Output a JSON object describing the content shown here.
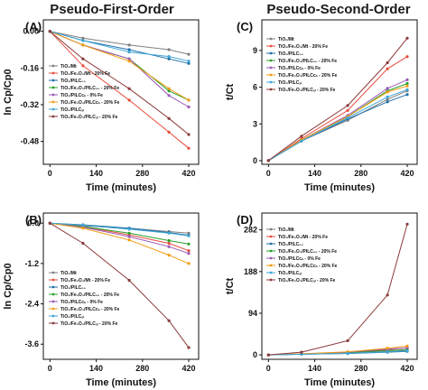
{
  "titles": {
    "left": "Pseudo-First-Order",
    "right": "Pseudo-Second-Order"
  },
  "series_names": [
    "TiO₂/Mt",
    "TiO₂/Fe₂O₃/Mt - 20% Fe",
    "TiO₂/PILC₀₀",
    "TiO₂/Fe₂O₃/PILC₀₀ - 20% Fe",
    "TiO₂/PILCᴄₙ - 0% Fe",
    "TiO₂/Fe₂O₃/PILCᴄₙ - 20% Fe",
    "TiO₂/PILCₐₗ",
    "TiO₂/Fe₂O₃/PILCₐₗ - 20% Fe"
  ],
  "colors": [
    "#7f7f7f",
    "#e74c3c",
    "#1f6fa8",
    "#2ca02c",
    "#9b59b6",
    "#f39c12",
    "#3fa7d6",
    "#8b3a3a"
  ],
  "chart_data": [
    {
      "letter": "(A)",
      "type": "line",
      "xlabel": "Time (minutes)",
      "ylabel": "ln Cp/Cp0",
      "xlim": [
        -20,
        450
      ],
      "ylim": [
        -0.58,
        0.05
      ],
      "xticks": [
        0,
        140,
        280,
        420
      ],
      "yticks": [
        0.0,
        -0.16,
        -0.32,
        -0.48
      ],
      "ytick_labels": [
        "0.00",
        "-0.16",
        "-0.32",
        "-0.48"
      ],
      "x": [
        0,
        100,
        240,
        360,
        420
      ],
      "series": [
        {
          "values": [
            0,
            -0.03,
            -0.06,
            -0.08,
            -0.1
          ]
        },
        {
          "values": [
            0,
            -0.15,
            -0.3,
            -0.44,
            -0.51
          ]
        },
        {
          "values": [
            0,
            -0.04,
            -0.08,
            -0.12,
            -0.14
          ]
        },
        {
          "values": [
            0,
            -0.06,
            -0.12,
            -0.26,
            -0.3
          ]
        },
        {
          "values": [
            0,
            -0.06,
            -0.12,
            -0.28,
            -0.33
          ]
        },
        {
          "values": [
            0,
            -0.06,
            -0.13,
            -0.25,
            -0.3
          ]
        },
        {
          "values": [
            0,
            -0.04,
            -0.09,
            -0.11,
            -0.13
          ]
        },
        {
          "values": [
            0,
            -0.12,
            -0.25,
            -0.38,
            -0.45
          ]
        }
      ]
    },
    {
      "letter": "(C)",
      "type": "line",
      "xlabel": "Time (minutes)",
      "ylabel": "t/Ct",
      "xlim": [
        -20,
        450
      ],
      "ylim": [
        -0.3,
        11.5
      ],
      "xticks": [
        0,
        140,
        280,
        420
      ],
      "yticks": [
        0,
        3,
        6,
        9
      ],
      "ytick_labels": [
        "0",
        "3",
        "6",
        "9"
      ],
      "x": [
        0,
        100,
        240,
        360,
        420
      ],
      "series": [
        {
          "values": [
            0,
            1.6,
            3.3,
            5.0,
            5.7
          ]
        },
        {
          "values": [
            0,
            1.8,
            4.1,
            7.5,
            8.5
          ]
        },
        {
          "values": [
            0,
            1.6,
            3.4,
            4.8,
            5.4
          ]
        },
        {
          "values": [
            0,
            1.7,
            3.6,
            5.7,
            6.3
          ]
        },
        {
          "values": [
            0,
            1.7,
            3.7,
            5.9,
            6.6
          ]
        },
        {
          "values": [
            0,
            1.7,
            3.6,
            5.6,
            6.1
          ]
        },
        {
          "values": [
            0,
            1.6,
            3.5,
            5.2,
            5.8
          ]
        },
        {
          "values": [
            0,
            2.0,
            4.5,
            8.0,
            10.0
          ]
        }
      ]
    },
    {
      "letter": "(B)",
      "type": "line",
      "xlabel": "Time (minutes)",
      "ylabel": "ln Cp/Cp0",
      "xlim": [
        -20,
        450
      ],
      "ylim": [
        -4.05,
        0.3
      ],
      "xticks": [
        0,
        140,
        280,
        420
      ],
      "yticks": [
        0.0,
        -1.2,
        -2.4,
        -3.6
      ],
      "ytick_labels": [
        "0.0",
        "-1.2",
        "-2.4",
        "-3.6"
      ],
      "x": [
        0,
        100,
        240,
        360,
        420
      ],
      "series": [
        {
          "values": [
            0,
            -0.08,
            -0.15,
            -0.25,
            -0.3
          ]
        },
        {
          "values": [
            0,
            -0.1,
            -0.35,
            -0.6,
            -0.82
          ]
        },
        {
          "values": [
            0,
            -0.05,
            -0.15,
            -0.28,
            -0.36
          ]
        },
        {
          "values": [
            0,
            -0.1,
            -0.3,
            -0.52,
            -0.62
          ]
        },
        {
          "values": [
            0,
            -0.12,
            -0.4,
            -0.7,
            -0.9
          ]
        },
        {
          "values": [
            0,
            -0.15,
            -0.5,
            -0.95,
            -1.2
          ]
        },
        {
          "values": [
            0,
            -0.06,
            -0.18,
            -0.3,
            -0.38
          ]
        },
        {
          "values": [
            0,
            -0.6,
            -1.7,
            -2.9,
            -3.7
          ]
        }
      ]
    },
    {
      "letter": "(D)",
      "type": "line",
      "xlabel": "Time (minutes)",
      "ylabel": "t/Ct",
      "xlim": [
        -20,
        450
      ],
      "ylim": [
        -10,
        320
      ],
      "xticks": [
        0,
        140,
        280,
        420
      ],
      "yticks": [
        0,
        94,
        188,
        282
      ],
      "ytick_labels": [
        "0",
        "94",
        "188",
        "282"
      ],
      "x": [
        0,
        100,
        240,
        360,
        420
      ],
      "series": [
        {
          "values": [
            0,
            1.5,
            4,
            8,
            10
          ]
        },
        {
          "values": [
            0,
            2,
            5,
            12,
            16
          ]
        },
        {
          "values": [
            0,
            1.5,
            3,
            6,
            8
          ]
        },
        {
          "values": [
            0,
            2,
            5,
            10,
            12
          ]
        },
        {
          "values": [
            0,
            2,
            6,
            13,
            16
          ]
        },
        {
          "values": [
            0,
            2.5,
            7,
            15,
            20
          ]
        },
        {
          "values": [
            0,
            1.5,
            3.5,
            7,
            9
          ]
        },
        {
          "values": [
            0,
            6,
            32,
            135,
            295
          ]
        }
      ]
    }
  ]
}
